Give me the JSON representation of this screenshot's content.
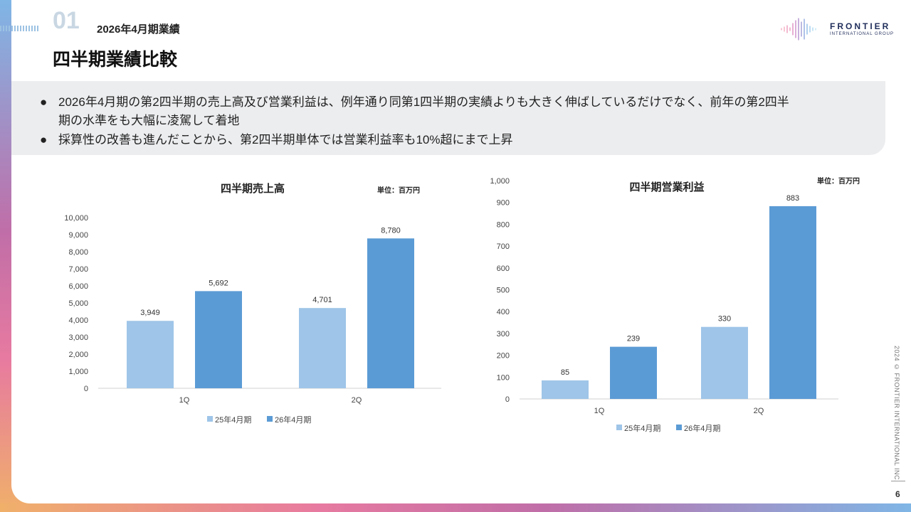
{
  "header": {
    "section_number": "01",
    "section_title": "2026年4月期業績",
    "page_title": "四半期業績比較"
  },
  "logo": {
    "name": "FRONTIER",
    "subtitle": "INTERNATIONAL GROUP"
  },
  "summary": {
    "bullets": [
      {
        "marker": "●",
        "lines": [
          "2026年4月期の第2四半期の売上高及び営業利益は、例年通り同第1四半期の実績よりも大きく伸ばしているだけでなく、前年の第2四半",
          "期の水準をも大幅に凌駕して着地"
        ]
      },
      {
        "marker": "●",
        "lines": [
          "採算性の改善も進んだことから、第2四半期単体では営業利益率も10%超にまで上昇"
        ]
      }
    ]
  },
  "footer": {
    "copyright": "2024 © FRONTIER INTERNATIONAL INC.",
    "page_number": "6"
  },
  "colors": {
    "series_prev": "#9fc5e8",
    "series_curr": "#5b9bd5",
    "axis": "#d0d0d0"
  },
  "chart_data": [
    {
      "type": "bar",
      "title": "四半期売上高",
      "unit_label": "単位：百万円",
      "categories": [
        "1Q",
        "2Q"
      ],
      "series": [
        {
          "name": "25年4月期",
          "values": [
            3949,
            4701
          ]
        },
        {
          "name": "26年4月期",
          "values": [
            5692,
            8780
          ]
        }
      ],
      "data_labels": [
        [
          "3,949",
          "4,701"
        ],
        [
          "5,692",
          "8,780"
        ]
      ],
      "ylim": [
        0,
        10000
      ],
      "yticks": [
        "0",
        "1,000",
        "2,000",
        "3,000",
        "4,000",
        "5,000",
        "6,000",
        "7,000",
        "8,000",
        "9,000",
        "10,000"
      ],
      "legend": "bottom",
      "grid": false
    },
    {
      "type": "bar",
      "title": "四半期営業利益",
      "unit_label": "単位：百万円",
      "categories": [
        "1Q",
        "2Q"
      ],
      "series": [
        {
          "name": "25年4月期",
          "values": [
            85,
            330
          ]
        },
        {
          "name": "26年4月期",
          "values": [
            239,
            883
          ]
        }
      ],
      "data_labels": [
        [
          "85",
          "330"
        ],
        [
          "239",
          "883"
        ]
      ],
      "ylim": [
        0,
        1000
      ],
      "yticks": [
        "0",
        "100",
        "200",
        "300",
        "400",
        "500",
        "600",
        "700",
        "800",
        "900",
        "1,000"
      ],
      "legend": "bottom",
      "grid": false
    }
  ]
}
